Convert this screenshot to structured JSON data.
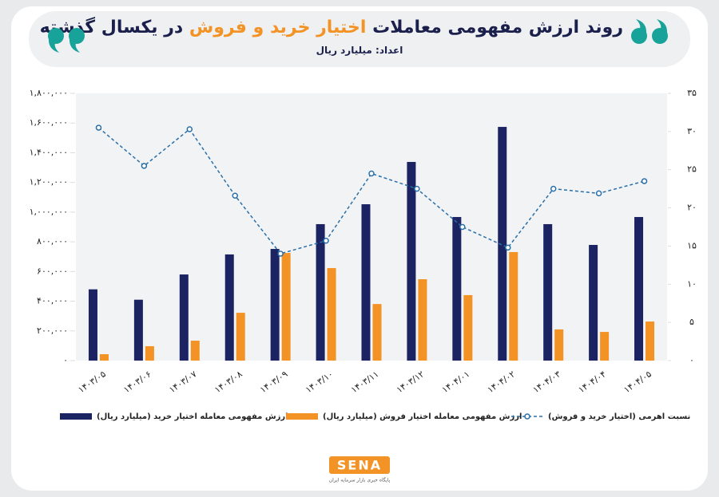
{
  "chart_data": {
    "type": "bar-line",
    "title": [
      "روند ارزش مفهومی معاملات",
      "اختیار خرید و فروش",
      "در یکسال گذشته"
    ],
    "subtitle": "اعداد: میلیارد ریال",
    "categories": [
      "۱۴۰۳/۰۵",
      "۱۴۰۳/۰۶",
      "۱۴۰۳/۰۷",
      "۱۴۰۳/۰۸",
      "۱۴۰۳/۰۹",
      "۱۴۰۳/۱۰",
      "۱۴۰۳/۱۱",
      "۱۴۰۳/۱۲",
      "۱۴۰۴/۰۱",
      "۱۴۰۴/۰۲",
      "۱۴۰۴/۰۳",
      "۱۴۰۴/۰۴",
      "۱۴۰۴/۰۵"
    ],
    "series": [
      {
        "name": "ارزش مفهومی معامله اختیار خرید (میلیارد ریال)",
        "type": "bar",
        "color": "#1b2363",
        "values": [
          480000,
          410000,
          580000,
          715000,
          752000,
          919000,
          1053000,
          1338000,
          967000,
          1574000,
          919000,
          779000,
          967000
        ]
      },
      {
        "name": "ارزش مفهومی معامله اختیار فروش (میلیارد ریال)",
        "type": "bar",
        "color": "#f39325",
        "values": [
          43000,
          97000,
          134000,
          322000,
          725000,
          623000,
          381000,
          548000,
          441000,
          731000,
          210000,
          193000,
          263000
        ]
      },
      {
        "name": "نسبت اهرمی (اختیار خرید و فروش)",
        "type": "line",
        "axis": "y2",
        "color": "#2a6fa8",
        "dashed": true,
        "values": [
          30.5,
          25.5,
          30.3,
          21.6,
          14.0,
          15.7,
          24.5,
          22.5,
          17.5,
          14.8,
          22.5,
          21.9,
          23.5
        ]
      }
    ],
    "ylim": [
      0,
      1800000
    ],
    "yticks": [
      {
        "value": 0,
        "label": "۰"
      },
      {
        "value": 200000,
        "label": "۲۰۰,۰۰۰"
      },
      {
        "value": 400000,
        "label": "۴۰۰,۰۰۰"
      },
      {
        "value": 600000,
        "label": "۶۰۰,۰۰۰"
      },
      {
        "value": 800000,
        "label": "۸۰۰,۰۰۰"
      },
      {
        "value": 1000000,
        "label": "۱,۰۰۰,۰۰۰"
      },
      {
        "value": 1200000,
        "label": "۱,۲۰۰,۰۰۰"
      },
      {
        "value": 1400000,
        "label": "۱,۴۰۰,۰۰۰"
      },
      {
        "value": 1600000,
        "label": "۱,۶۰۰,۰۰۰"
      },
      {
        "value": 1800000,
        "label": "۱,۸۰۰,۰۰۰"
      }
    ],
    "y2lim": [
      0,
      35
    ],
    "y2ticks": [
      {
        "value": 0,
        "label": "۰"
      },
      {
        "value": 5,
        "label": "۵"
      },
      {
        "value": 10,
        "label": "۱۰"
      },
      {
        "value": 15,
        "label": "۱۵"
      },
      {
        "value": 20,
        "label": "۲۰"
      },
      {
        "value": 25,
        "label": "۲۵"
      },
      {
        "value": 30,
        "label": "۳۰"
      },
      {
        "value": 35,
        "label": "۳۵"
      }
    ],
    "legend": "bottom",
    "logo": "SENA",
    "logo_caption": "پایگاه خبری بازار سرمایه ایران"
  }
}
